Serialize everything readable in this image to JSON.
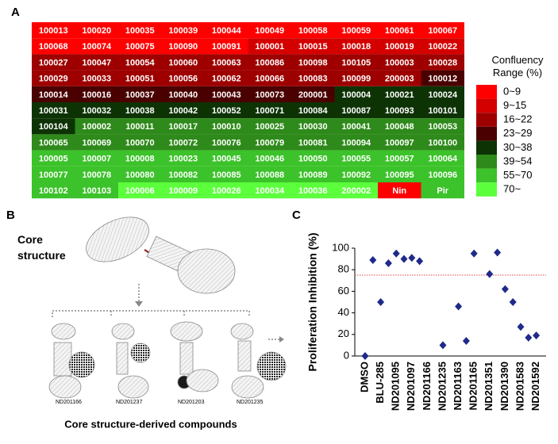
{
  "panels": {
    "a": "A",
    "b": "B",
    "c": "C"
  },
  "heatmap": {
    "rows": [
      [
        "100013",
        "100020",
        "100035",
        "100039",
        "100044",
        "100049",
        "100058",
        "100059",
        "100061",
        "100067"
      ],
      [
        "100068",
        "100074",
        "100075",
        "100090",
        "100091",
        "100001",
        "100015",
        "100018",
        "100019",
        "100022"
      ],
      [
        "100027",
        "100047",
        "100054",
        "100060",
        "100063",
        "100086",
        "100098",
        "100105",
        "100003",
        "100028"
      ],
      [
        "100029",
        "100033",
        "100051",
        "100056",
        "100062",
        "100066",
        "100083",
        "100099",
        "200003",
        "100012"
      ],
      [
        "100014",
        "100016",
        "100037",
        "100040",
        "100043",
        "100073",
        "200001",
        "100004",
        "100021",
        "100024"
      ],
      [
        "100031",
        "100032",
        "100038",
        "100042",
        "100052",
        "100071",
        "100084",
        "100087",
        "100093",
        "100101"
      ],
      [
        "100104",
        "100002",
        "100011",
        "100017",
        "100010",
        "100025",
        "100030",
        "100041",
        "100048",
        "100053"
      ],
      [
        "100065",
        "100069",
        "100070",
        "100072",
        "100076",
        "100079",
        "100081",
        "100094",
        "100097",
        "100100"
      ],
      [
        "100005",
        "100007",
        "100008",
        "100023",
        "100045",
        "100046",
        "100050",
        "100055",
        "100057",
        "100064"
      ],
      [
        "100077",
        "100078",
        "100080",
        "100082",
        "100085",
        "100088",
        "100089",
        "100092",
        "100095",
        "100096"
      ],
      [
        "100102",
        "100103",
        "100006",
        "100009",
        "100026",
        "100034",
        "100036",
        "200002",
        "Nin",
        "Pir"
      ]
    ],
    "levels": [
      [
        0,
        0,
        0,
        0,
        0,
        0,
        0,
        0,
        0,
        0
      ],
      [
        0,
        0,
        0,
        0,
        0,
        1,
        1,
        1,
        1,
        1
      ],
      [
        2,
        2,
        2,
        2,
        2,
        2,
        2,
        2,
        2,
        2
      ],
      [
        2,
        2,
        2,
        2,
        2,
        2,
        2,
        2,
        2,
        3
      ],
      [
        3,
        3,
        3,
        3,
        3,
        3,
        3,
        4,
        4,
        4
      ],
      [
        4,
        4,
        4,
        4,
        4,
        4,
        4,
        4,
        4,
        4
      ],
      [
        4,
        5,
        5,
        5,
        5,
        5,
        5,
        5,
        5,
        5
      ],
      [
        5,
        5,
        5,
        5,
        5,
        5,
        5,
        5,
        5,
        5
      ],
      [
        6,
        6,
        6,
        6,
        6,
        6,
        6,
        6,
        6,
        6
      ],
      [
        6,
        6,
        6,
        6,
        6,
        6,
        6,
        6,
        6,
        6
      ],
      [
        6,
        6,
        7,
        7,
        7,
        7,
        7,
        7,
        0,
        6
      ]
    ],
    "legend": {
      "title": "Confluency Range (%)",
      "labels": [
        "0~9",
        "9~15",
        "16~22",
        "23~29",
        "30~38",
        "39~54",
        "55~70",
        "70~"
      ],
      "colors": [
        "#ff0000",
        "#d40000",
        "#9e0000",
        "#4a0000",
        "#0d3305",
        "#2e8a1a",
        "#3cc22a",
        "#5cff3c"
      ]
    }
  },
  "diagram": {
    "core_label": "Core structure",
    "compounds": [
      "ND201166",
      "ND201237",
      "ND201203",
      "ND201235"
    ],
    "caption": "Core structure-derived compounds"
  },
  "chart_data": {
    "type": "scatter",
    "y_label": "Proliferation Inhibition (%)",
    "categories": [
      "DMSO",
      null,
      "BLU-285",
      null,
      "ND201095",
      null,
      "ND201097",
      null,
      "ND201166",
      null,
      "ND201235",
      null,
      "ND201163",
      null,
      "ND201165",
      null,
      "ND201351",
      null,
      "ND201390",
      null,
      "ND201583",
      null,
      "ND201592"
    ],
    "values": [
      0,
      89,
      50,
      86,
      95,
      90,
      91,
      88,
      null,
      null,
      10,
      null,
      46,
      14,
      95,
      null,
      76,
      96,
      62,
      50,
      27,
      17,
      19
    ],
    "color": "#1f2a8a",
    "ylim": [
      0,
      100
    ],
    "yticks": [
      0,
      20,
      40,
      60,
      80,
      100
    ],
    "reference_line": {
      "value": 75,
      "color": "#e04848"
    }
  }
}
